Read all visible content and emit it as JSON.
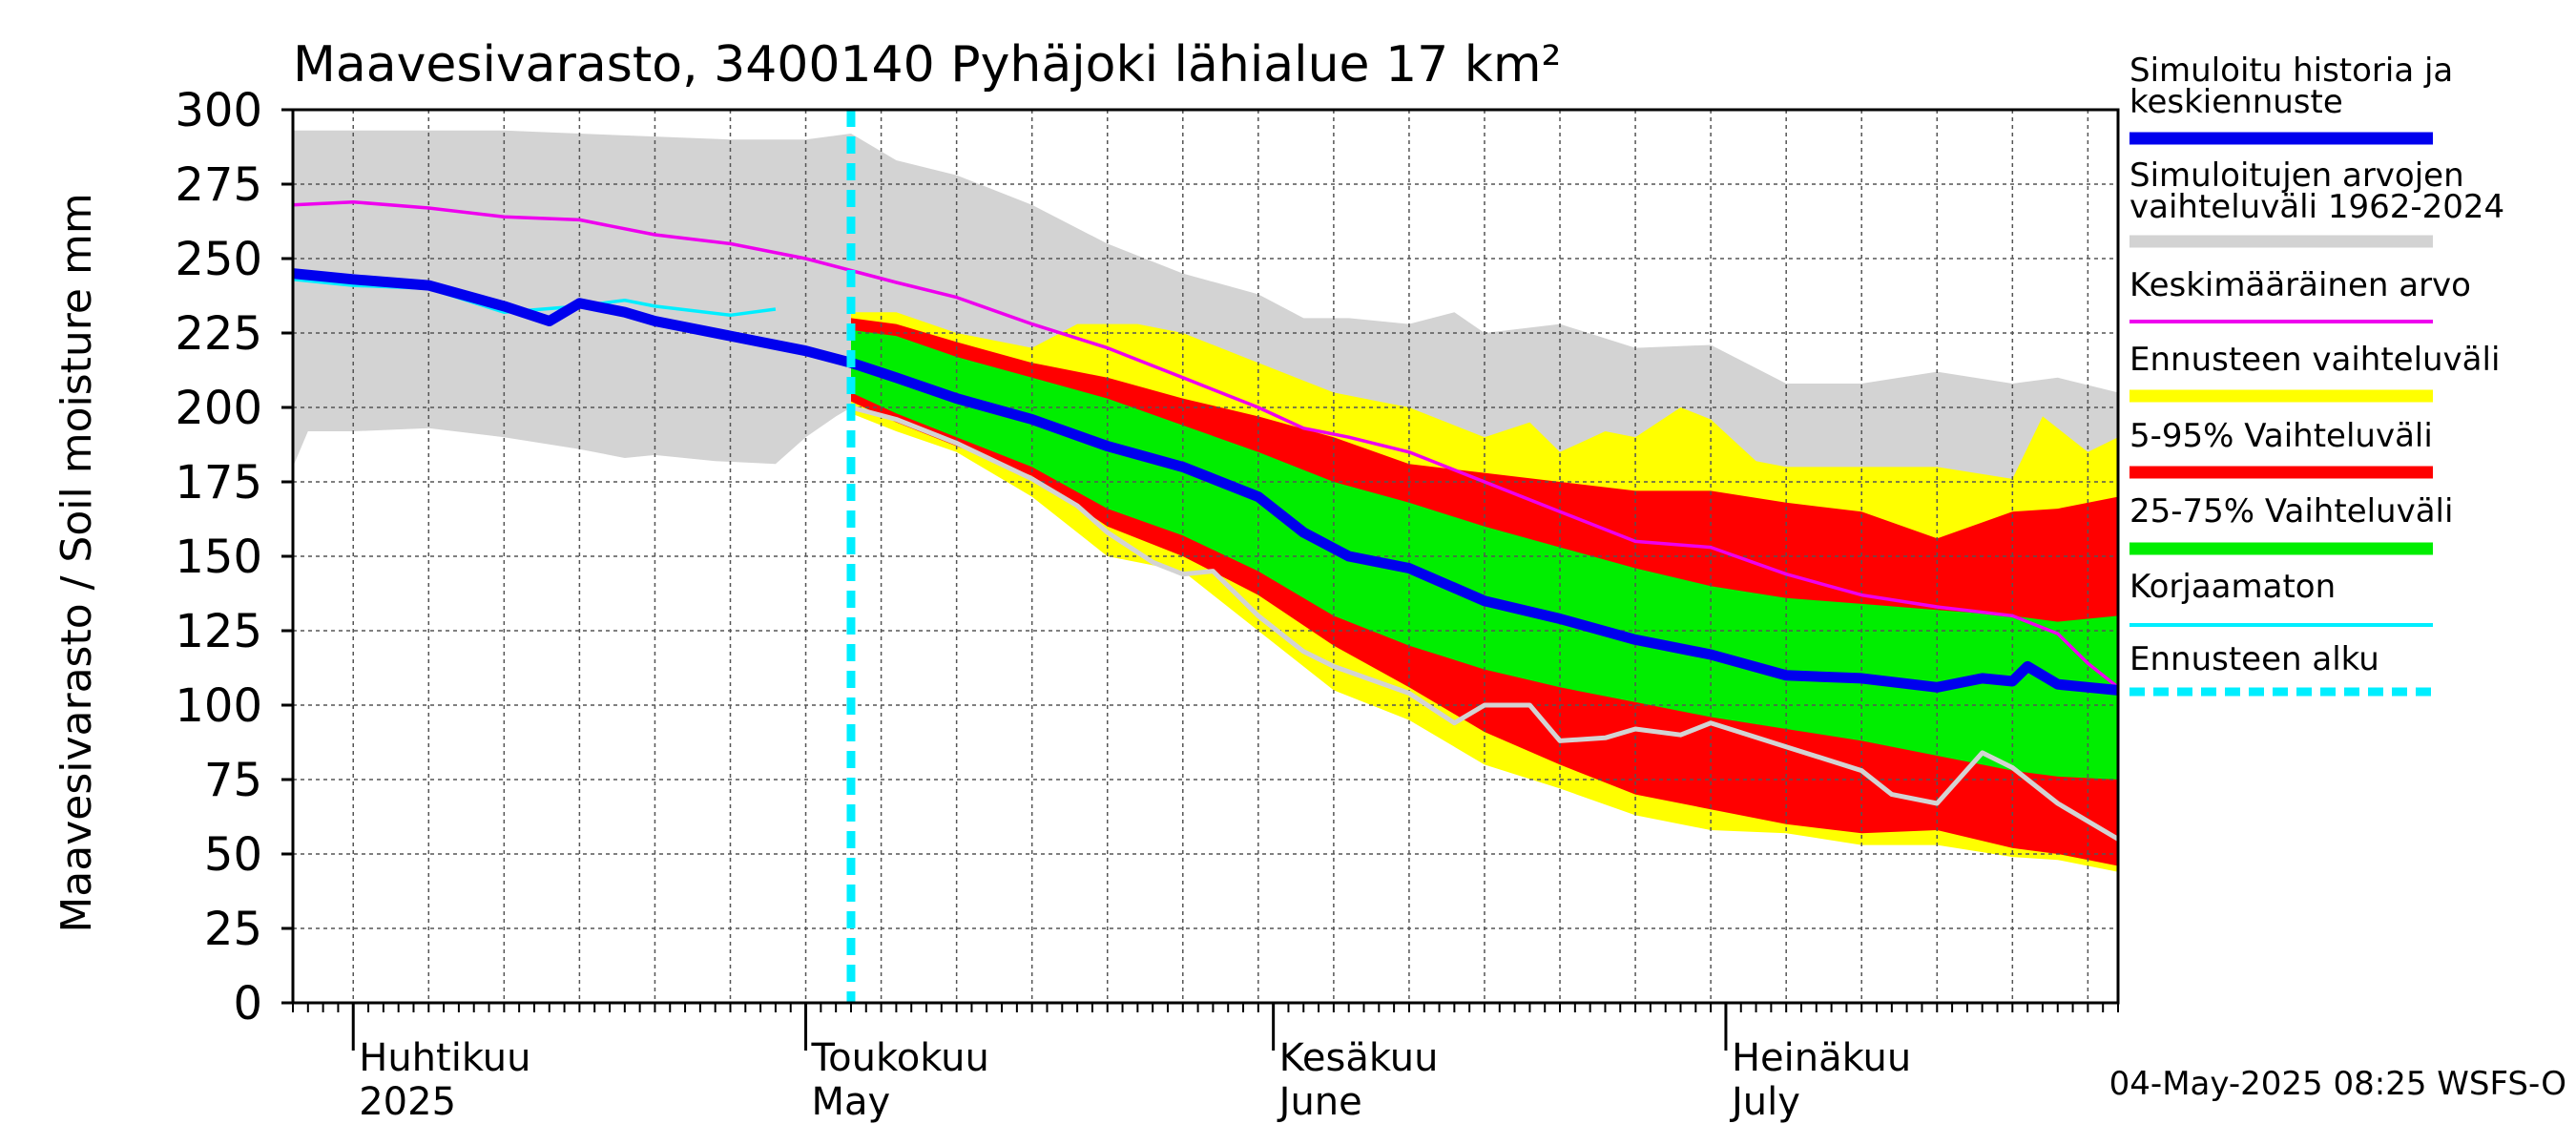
{
  "chart_data": {
    "type": "area",
    "title": "Maavesivarasto, 3400140 Pyhäjoki lähialue 17 km²",
    "ylabel": "Maavesivarasto / Soil moisture   mm",
    "ylim": [
      0,
      300
    ],
    "yticks": [
      0,
      25,
      50,
      75,
      100,
      125,
      150,
      175,
      200,
      225,
      250,
      275,
      300
    ],
    "xlim_days": [
      -4,
      117
    ],
    "x_unit": "days since 2025-04-01",
    "forecast_start_day": 33,
    "months": [
      {
        "day": 0,
        "fi": "Huhtikuu",
        "en": "2025"
      },
      {
        "day": 30,
        "fi": "Toukokuu",
        "en": "May"
      },
      {
        "day": 61,
        "fi": "Kesäkuu",
        "en": "June"
      },
      {
        "day": 91,
        "fi": "Heinäkuu",
        "en": "July"
      }
    ],
    "timestamp": "04-May-2025 08:25 WSFS-O",
    "legend": [
      {
        "key": "history",
        "label1": "Simuloitu historia ja",
        "label2": "keskiennuste",
        "color": "#0000ee",
        "style": "thick"
      },
      {
        "key": "range",
        "label1": "Simuloitujen arvojen",
        "label2": "vaihteluväli 1962-2024",
        "color": "#d3d3d3",
        "style": "thick"
      },
      {
        "key": "mean",
        "label1": "Keskimääräinen arvo",
        "label2": "",
        "color": "#ee00ee",
        "style": "thin"
      },
      {
        "key": "fc_range",
        "label1": "Ennusteen vaihteluväli",
        "label2": "",
        "color": "#ffff00",
        "style": "thick"
      },
      {
        "key": "p5_95",
        "label1": "5-95% Vaihteluväli",
        "label2": "",
        "color": "#ff0000",
        "style": "thick"
      },
      {
        "key": "p25_75",
        "label1": "25-75% Vaihteluväli",
        "label2": "",
        "color": "#00ee00",
        "style": "thick"
      },
      {
        "key": "uncorrected",
        "label1": "Korjaamaton",
        "label2": "",
        "color": "#00eeff",
        "style": "thin"
      },
      {
        "key": "fc_start",
        "label1": "Ennusteen alku",
        "label2": "",
        "color": "#00eeff",
        "style": "dashed"
      }
    ],
    "series": {
      "hist_range_upper": {
        "x": [
          -4,
          0,
          5,
          10,
          15,
          20,
          25,
          30,
          33,
          36,
          40,
          45,
          50,
          55,
          60,
          63,
          66,
          70,
          73,
          75,
          80,
          85,
          90,
          95,
          100,
          105,
          110,
          113,
          117
        ],
        "y": [
          293,
          293,
          293,
          293,
          292,
          291,
          290,
          290,
          292,
          283,
          278,
          268,
          255,
          245,
          238,
          230,
          230,
          228,
          232,
          225,
          228,
          220,
          221,
          208,
          208,
          212,
          208,
          210,
          205
        ]
      },
      "hist_range_lower": {
        "x": [
          -4,
          -3,
          0,
          5,
          10,
          15,
          18,
          20,
          24,
          28,
          30,
          32,
          33,
          36,
          40,
          45,
          50,
          55,
          60,
          63,
          66,
          70,
          75,
          80,
          85,
          90,
          95,
          100,
          105,
          110,
          113,
          117
        ],
        "y": [
          180,
          192,
          192,
          193,
          190,
          186,
          183,
          184,
          182,
          181,
          190,
          197,
          200,
          197,
          193,
          188,
          178,
          165,
          150,
          140,
          130,
          115,
          98,
          90,
          83,
          78,
          72,
          67,
          63,
          58,
          55,
          50
        ]
      },
      "mean": {
        "x": [
          -4,
          0,
          5,
          10,
          15,
          20,
          25,
          30,
          33,
          36,
          40,
          45,
          50,
          55,
          60,
          63,
          66,
          70,
          75,
          80,
          85,
          90,
          95,
          100,
          105,
          110,
          113,
          115,
          117
        ],
        "y": [
          268,
          269,
          267,
          264,
          263,
          258,
          255,
          250,
          246,
          242,
          237,
          228,
          220,
          210,
          200,
          193,
          190,
          185,
          175,
          165,
          155,
          153,
          144,
          137,
          133,
          130,
          124,
          114,
          106
        ]
      },
      "uncorrected": {
        "x": [
          -4,
          0,
          5,
          10,
          15,
          18,
          20,
          25,
          28
        ],
        "y": [
          243,
          241,
          240,
          232,
          234,
          236,
          234,
          231,
          233
        ]
      },
      "median": {
        "x": [
          -4,
          0,
          5,
          10,
          13,
          15,
          18,
          20,
          25,
          30,
          33,
          36,
          40,
          45,
          50,
          55,
          60,
          63,
          66,
          70,
          75,
          80,
          85,
          90,
          95,
          100,
          105,
          108,
          110,
          111,
          113,
          115,
          117
        ],
        "y": [
          245,
          243,
          241,
          234,
          229,
          235,
          232,
          229,
          224,
          219,
          215,
          210,
          203,
          196,
          187,
          180,
          170,
          158,
          150,
          146,
          135,
          129,
          122,
          117,
          110,
          109,
          106,
          109,
          108,
          113,
          107,
          106,
          105
        ]
      },
      "p25_75_upper": {
        "x": [
          33,
          36,
          40,
          45,
          50,
          55,
          60,
          65,
          70,
          75,
          80,
          85,
          90,
          95,
          100,
          105,
          110,
          113,
          117
        ],
        "y": [
          226,
          224,
          217,
          210,
          203,
          194,
          185,
          175,
          168,
          160,
          153,
          146,
          140,
          136,
          134,
          132,
          130,
          128,
          130
        ]
      },
      "p25_75_lower": {
        "x": [
          33,
          36,
          40,
          45,
          50,
          55,
          60,
          65,
          70,
          75,
          80,
          85,
          90,
          95,
          100,
          105,
          110,
          113,
          117
        ],
        "y": [
          205,
          198,
          190,
          180,
          166,
          157,
          145,
          130,
          120,
          112,
          106,
          101,
          96,
          92,
          88,
          83,
          78,
          76,
          75
        ]
      },
      "p5_95_upper": {
        "x": [
          33,
          36,
          40,
          45,
          50,
          55,
          60,
          65,
          70,
          75,
          80,
          85,
          90,
          95,
          100,
          105,
          110,
          113,
          117
        ],
        "y": [
          230,
          228,
          222,
          215,
          210,
          203,
          197,
          190,
          181,
          178,
          175,
          172,
          172,
          168,
          165,
          156,
          165,
          166,
          170
        ]
      },
      "p5_95_lower": {
        "x": [
          33,
          36,
          40,
          45,
          50,
          55,
          60,
          65,
          70,
          75,
          80,
          85,
          90,
          95,
          100,
          105,
          110,
          113,
          117
        ],
        "y": [
          202,
          195,
          187,
          177,
          160,
          150,
          137,
          120,
          106,
          91,
          80,
          70,
          65,
          60,
          57,
          58,
          52,
          50,
          46
        ]
      },
      "fc_range_upper": {
        "x": [
          33,
          36,
          40,
          45,
          48,
          52,
          55,
          60,
          65,
          70,
          75,
          78,
          80,
          83,
          85,
          88,
          90,
          93,
          95,
          100,
          105,
          110,
          112,
          115,
          117
        ],
        "y": [
          232,
          232,
          225,
          220,
          228,
          228,
          225,
          215,
          205,
          200,
          190,
          195,
          185,
          192,
          190,
          200,
          196,
          182,
          180,
          180,
          180,
          176,
          197,
          185,
          190
        ]
      },
      "fc_range_lower": {
        "x": [
          33,
          36,
          40,
          45,
          50,
          55,
          60,
          65,
          70,
          75,
          80,
          85,
          90,
          95,
          100,
          105,
          110,
          113,
          117
        ],
        "y": [
          198,
          192,
          185,
          170,
          150,
          145,
          125,
          105,
          95,
          80,
          72,
          63,
          58,
          57,
          53,
          53,
          49,
          48,
          44
        ]
      },
      "lowest": {
        "x": [
          33,
          36,
          40,
          45,
          48,
          50,
          53,
          55,
          57,
          60,
          63,
          65,
          70,
          73,
          75,
          78,
          80,
          83,
          85,
          88,
          90,
          95,
          100,
          102,
          105,
          108,
          110,
          113,
          117
        ],
        "y": [
          200,
          196,
          188,
          176,
          167,
          158,
          148,
          144,
          145,
          130,
          118,
          113,
          104,
          94,
          100,
          100,
          88,
          89,
          92,
          90,
          94,
          86,
          78,
          70,
          67,
          84,
          79,
          67,
          55
        ]
      }
    }
  }
}
